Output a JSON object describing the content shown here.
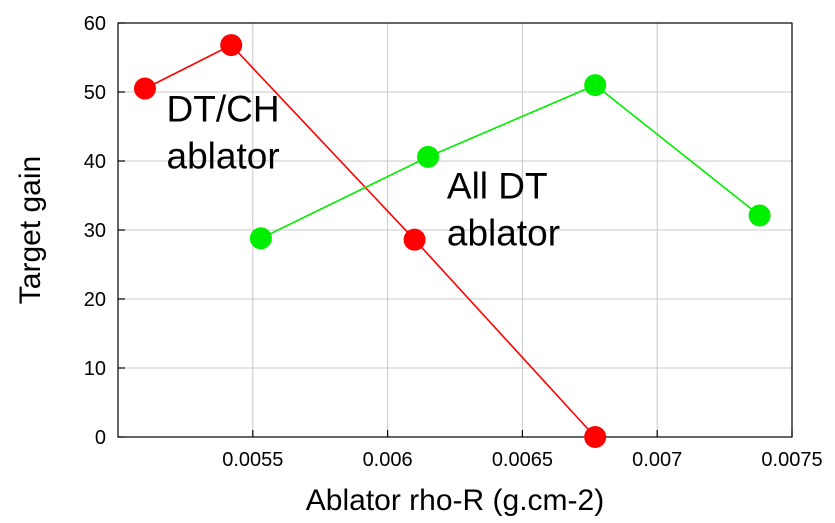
{
  "chart_data": {
    "type": "line",
    "xlabel": "Ablator rho-R (g.cm-2)",
    "ylabel": "Target gain",
    "xlim": [
      0.005,
      0.0075
    ],
    "ylim": [
      0,
      60
    ],
    "grid": true,
    "x_ticks": [
      {
        "value": 0.0055,
        "label": "0.0055"
      },
      {
        "value": 0.006,
        "label": "0.006"
      },
      {
        "value": 0.0065,
        "label": "0.0065"
      },
      {
        "value": 0.007,
        "label": "0.007"
      },
      {
        "value": 0.0075,
        "label": "0.0075"
      }
    ],
    "y_ticks": [
      {
        "value": 0,
        "label": "0"
      },
      {
        "value": 10,
        "label": "10"
      },
      {
        "value": 20,
        "label": "20"
      },
      {
        "value": 30,
        "label": "30"
      },
      {
        "value": 40,
        "label": "40"
      },
      {
        "value": 50,
        "label": "50"
      },
      {
        "value": 60,
        "label": "60"
      }
    ],
    "series": [
      {
        "color": "#ff0000",
        "x": [
          0.0051,
          0.00542,
          0.0061,
          0.00677
        ],
        "y": [
          50.5,
          56.8,
          28.6,
          0.0
        ]
      },
      {
        "color": "#00ee00",
        "x": [
          0.00553,
          0.00615,
          0.00677,
          0.00738
        ],
        "y": [
          28.8,
          40.6,
          51.0,
          32.1
        ]
      }
    ],
    "annotations": [
      {
        "lines": [
          "DT/CH",
          "ablator"
        ],
        "x": 0.00518,
        "y": 45.7
      },
      {
        "lines": [
          "All DT",
          "ablator"
        ],
        "x": 0.00622,
        "y": 34.6
      }
    ]
  }
}
